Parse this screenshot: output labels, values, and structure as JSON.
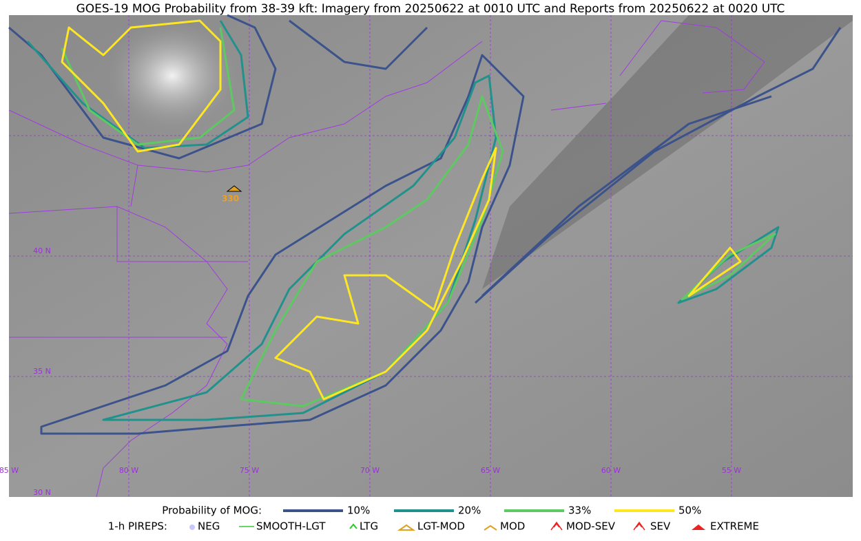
{
  "title": "GOES-19 MOG Probability from 38-39 kft: Imagery from 20250622 at 0010 UTC and Reports from 20250622 at 0020 UTC",
  "map": {
    "lon_labels": [
      "85 W",
      "80 W",
      "75 W",
      "70 W",
      "65 W",
      "60 W",
      "55 W"
    ],
    "lat_labels": [
      "40 N",
      "35 N",
      "30 N"
    ],
    "reports": [
      {
        "label": "330"
      }
    ]
  },
  "legend": {
    "probability": {
      "title": "Probability of MOG:",
      "items": [
        "10%",
        "20%",
        "33%",
        "50%"
      ]
    },
    "pireps": {
      "title": "1-h PIREPS:",
      "items": [
        "NEG",
        "SMOOTH-LGT",
        "LTG",
        "LGT-MOD",
        "MOD",
        "MOD-SEV",
        "SEV",
        "EXTREME"
      ]
    }
  }
}
